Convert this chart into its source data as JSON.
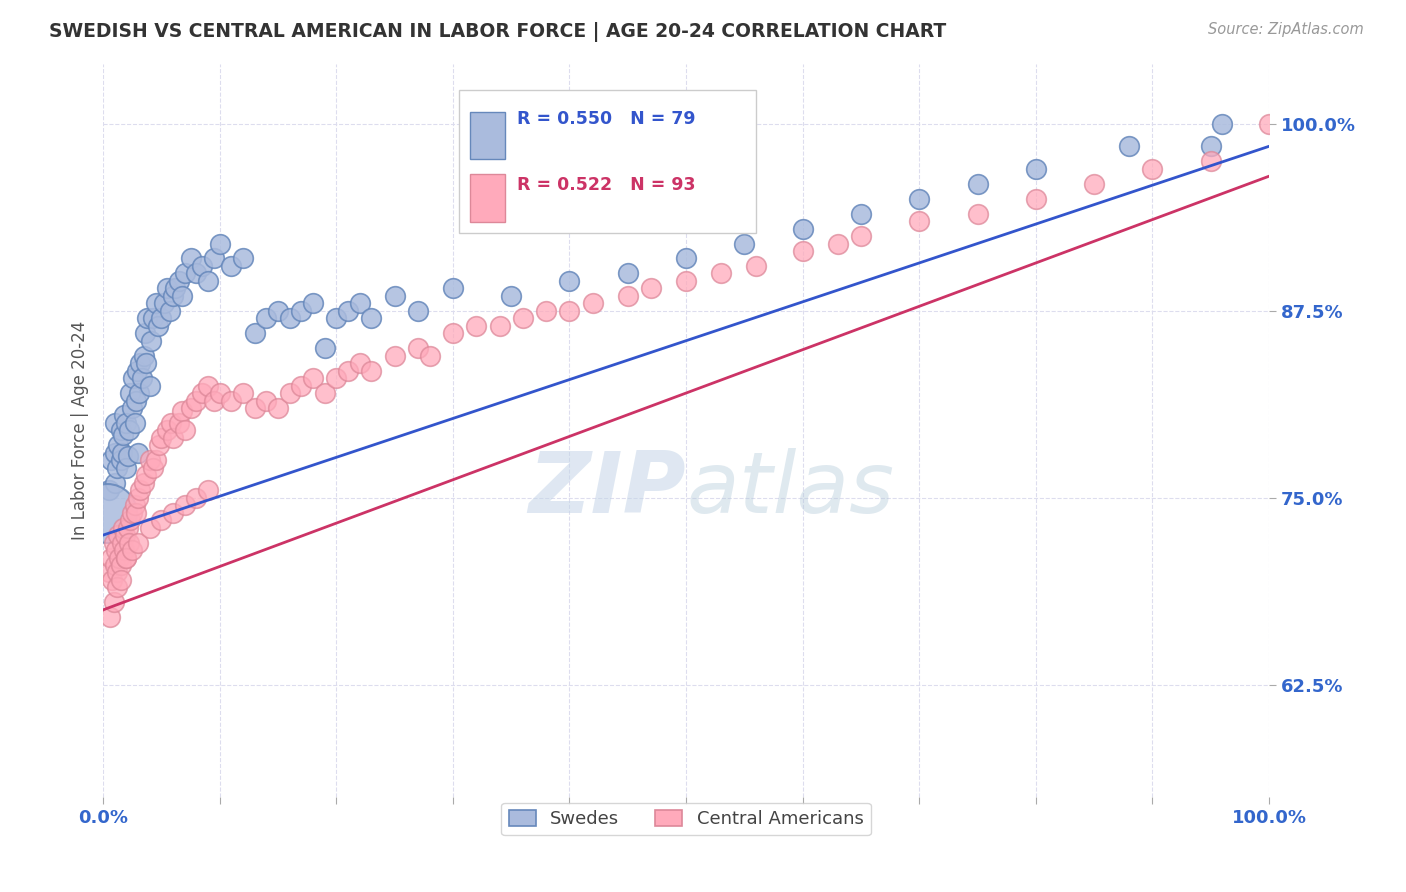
{
  "title": "SWEDISH VS CENTRAL AMERICAN IN LABOR FORCE | AGE 20-24 CORRELATION CHART",
  "source": "Source: ZipAtlas.com",
  "ylabel": "In Labor Force | Age 20-24",
  "xlim": [
    0.0,
    1.0
  ],
  "ylim": [
    0.55,
    1.04
  ],
  "yticks": [
    0.625,
    0.75,
    0.875,
    1.0
  ],
  "xtick_labels": [
    "0.0%",
    "",
    "",
    "",
    "",
    "",
    "",
    "",
    "",
    "",
    "100.0%"
  ],
  "watermark": "ZIPatlas",
  "blue_R": 0.55,
  "blue_N": 79,
  "pink_R": 0.522,
  "pink_N": 93,
  "blue_face": "#aabbdd",
  "blue_edge": "#6688bb",
  "pink_face": "#ffaabb",
  "pink_edge": "#dd8899",
  "blue_line_color": "#3355cc",
  "pink_line_color": "#cc3366",
  "background_color": "#ffffff",
  "grid_color": "#ddddee",
  "title_color": "#333333",
  "axis_label_color": "#3366cc",
  "legend_label_blue": "Swedes",
  "legend_label_pink": "Central Americans",
  "blue_line_start_y": 0.725,
  "blue_line_end_y": 0.985,
  "pink_line_start_y": 0.675,
  "pink_line_end_y": 0.965,
  "blue_x": [
    0.005,
    0.007,
    0.01,
    0.01,
    0.01,
    0.012,
    0.013,
    0.015,
    0.015,
    0.016,
    0.017,
    0.018,
    0.02,
    0.02,
    0.021,
    0.022,
    0.023,
    0.025,
    0.026,
    0.027,
    0.028,
    0.029,
    0.03,
    0.031,
    0.032,
    0.033,
    0.035,
    0.036,
    0.037,
    0.038,
    0.04,
    0.041,
    0.043,
    0.045,
    0.047,
    0.05,
    0.052,
    0.055,
    0.057,
    0.06,
    0.062,
    0.065,
    0.068,
    0.07,
    0.075,
    0.08,
    0.085,
    0.09,
    0.095,
    0.1,
    0.11,
    0.12,
    0.13,
    0.14,
    0.15,
    0.16,
    0.17,
    0.18,
    0.19,
    0.2,
    0.21,
    0.22,
    0.23,
    0.25,
    0.27,
    0.3,
    0.35,
    0.4,
    0.45,
    0.5,
    0.55,
    0.6,
    0.65,
    0.7,
    0.75,
    0.8,
    0.88,
    0.95,
    0.96
  ],
  "blue_y": [
    0.755,
    0.775,
    0.76,
    0.78,
    0.8,
    0.77,
    0.785,
    0.775,
    0.795,
    0.78,
    0.792,
    0.805,
    0.77,
    0.8,
    0.778,
    0.795,
    0.82,
    0.81,
    0.83,
    0.8,
    0.815,
    0.835,
    0.78,
    0.82,
    0.84,
    0.83,
    0.845,
    0.86,
    0.84,
    0.87,
    0.825,
    0.855,
    0.87,
    0.88,
    0.865,
    0.87,
    0.88,
    0.89,
    0.875,
    0.885,
    0.89,
    0.895,
    0.885,
    0.9,
    0.91,
    0.9,
    0.905,
    0.895,
    0.91,
    0.92,
    0.905,
    0.91,
    0.86,
    0.87,
    0.875,
    0.87,
    0.875,
    0.88,
    0.85,
    0.87,
    0.875,
    0.88,
    0.87,
    0.885,
    0.875,
    0.89,
    0.885,
    0.895,
    0.9,
    0.91,
    0.92,
    0.93,
    0.94,
    0.95,
    0.96,
    0.97,
    0.985,
    0.985,
    1.0
  ],
  "pink_x": [
    0.005,
    0.007,
    0.008,
    0.009,
    0.01,
    0.011,
    0.012,
    0.013,
    0.014,
    0.015,
    0.016,
    0.017,
    0.018,
    0.019,
    0.02,
    0.021,
    0.022,
    0.023,
    0.025,
    0.027,
    0.028,
    0.03,
    0.032,
    0.035,
    0.037,
    0.04,
    0.043,
    0.045,
    0.048,
    0.05,
    0.055,
    0.058,
    0.06,
    0.065,
    0.068,
    0.07,
    0.075,
    0.08,
    0.085,
    0.09,
    0.095,
    0.1,
    0.11,
    0.12,
    0.13,
    0.14,
    0.15,
    0.16,
    0.17,
    0.18,
    0.19,
    0.2,
    0.21,
    0.22,
    0.23,
    0.25,
    0.27,
    0.28,
    0.3,
    0.32,
    0.34,
    0.36,
    0.38,
    0.4,
    0.42,
    0.45,
    0.47,
    0.5,
    0.53,
    0.56,
    0.6,
    0.63,
    0.65,
    0.7,
    0.75,
    0.8,
    0.85,
    0.9,
    0.95,
    1.0,
    0.006,
    0.009,
    0.012,
    0.015,
    0.02,
    0.025,
    0.03,
    0.04,
    0.05,
    0.06,
    0.07,
    0.08,
    0.09
  ],
  "pink_y": [
    0.7,
    0.71,
    0.695,
    0.72,
    0.705,
    0.715,
    0.7,
    0.725,
    0.71,
    0.705,
    0.72,
    0.73,
    0.715,
    0.725,
    0.71,
    0.73,
    0.72,
    0.735,
    0.74,
    0.745,
    0.74,
    0.75,
    0.755,
    0.76,
    0.765,
    0.775,
    0.77,
    0.775,
    0.785,
    0.79,
    0.795,
    0.8,
    0.79,
    0.8,
    0.808,
    0.795,
    0.81,
    0.815,
    0.82,
    0.825,
    0.815,
    0.82,
    0.815,
    0.82,
    0.81,
    0.815,
    0.81,
    0.82,
    0.825,
    0.83,
    0.82,
    0.83,
    0.835,
    0.84,
    0.835,
    0.845,
    0.85,
    0.845,
    0.86,
    0.865,
    0.865,
    0.87,
    0.875,
    0.875,
    0.88,
    0.885,
    0.89,
    0.895,
    0.9,
    0.905,
    0.915,
    0.92,
    0.925,
    0.935,
    0.94,
    0.95,
    0.96,
    0.97,
    0.975,
    1.0,
    0.67,
    0.68,
    0.69,
    0.695,
    0.71,
    0.715,
    0.72,
    0.73,
    0.735,
    0.74,
    0.745,
    0.75,
    0.755
  ]
}
